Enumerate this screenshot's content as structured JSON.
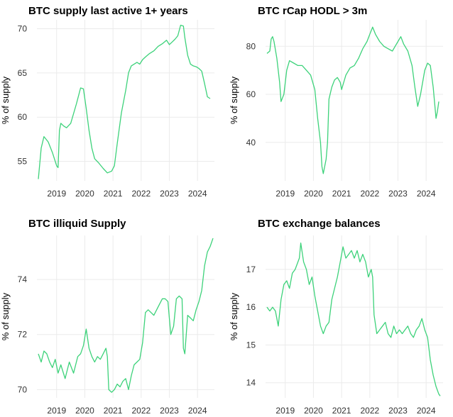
{
  "chart_data": [
    {
      "type": "line",
      "title": "BTC supply last active 1+ years",
      "xlabel": "",
      "ylabel": "% of supply",
      "x_ticks": [
        "2019",
        "2020",
        "2021",
        "2022",
        "2023",
        "2024"
      ],
      "y_ticks": [
        55,
        60,
        65,
        70
      ],
      "xlim": [
        2018.3,
        2024.6
      ],
      "ylim": [
        52.8,
        71.0
      ],
      "color": "#3dd27a",
      "series": [
        {
          "name": "supply last active 1+ years",
          "x": [
            2018.35,
            2018.45,
            2018.55,
            2018.7,
            2018.85,
            2018.95,
            2019.0,
            2019.05,
            2019.1,
            2019.15,
            2019.25,
            2019.35,
            2019.5,
            2019.7,
            2019.85,
            2019.95,
            2020.05,
            2020.15,
            2020.25,
            2020.35,
            2020.5,
            2020.65,
            2020.8,
            2020.95,
            2021.05,
            2021.15,
            2021.3,
            2021.45,
            2021.55,
            2021.65,
            2021.75,
            2021.85,
            2021.95,
            2022.05,
            2022.15,
            2022.3,
            2022.45,
            2022.6,
            2022.75,
            2022.9,
            2023.0,
            2023.1,
            2023.2,
            2023.3,
            2023.4,
            2023.5,
            2023.55,
            2023.65,
            2023.75,
            2023.85,
            2023.95,
            2024.05,
            2024.15,
            2024.25,
            2024.35,
            2024.45
          ],
          "values": [
            53.0,
            56.5,
            57.8,
            57.2,
            56.0,
            55.0,
            54.5,
            54.3,
            58.5,
            59.3,
            59.0,
            58.8,
            59.3,
            61.5,
            63.3,
            63.2,
            61.0,
            58.5,
            56.5,
            55.3,
            54.8,
            54.2,
            53.7,
            53.9,
            54.5,
            57.0,
            60.5,
            63.0,
            65.0,
            65.8,
            66.0,
            66.2,
            66.0,
            66.5,
            66.8,
            67.2,
            67.5,
            68.0,
            68.3,
            68.7,
            68.2,
            68.5,
            68.8,
            69.2,
            70.4,
            70.3,
            69.0,
            67.0,
            66.0,
            65.8,
            65.7,
            65.5,
            65.2,
            63.8,
            62.3,
            62.1
          ]
        }
      ]
    },
    {
      "type": "line",
      "title": "BTC rCap HODL > 3m",
      "xlabel": "",
      "ylabel": "% of supply",
      "x_ticks": [
        "2019",
        "2020",
        "2021",
        "2022",
        "2023",
        "2024"
      ],
      "y_ticks": [
        40,
        60,
        80
      ],
      "xlim": [
        2018.3,
        2024.6
      ],
      "ylim": [
        24,
        91
      ],
      "color": "#3dd27a",
      "series": [
        {
          "name": "rCap HODL > 3m",
          "x": [
            2018.35,
            2018.45,
            2018.5,
            2018.55,
            2018.6,
            2018.7,
            2018.8,
            2018.85,
            2018.95,
            2019.05,
            2019.15,
            2019.3,
            2019.45,
            2019.6,
            2019.75,
            2019.9,
            2020.05,
            2020.15,
            2020.25,
            2020.3,
            2020.35,
            2020.45,
            2020.5,
            2020.55,
            2020.65,
            2020.75,
            2020.85,
            2020.95,
            2021.0,
            2021.05,
            2021.15,
            2021.3,
            2021.45,
            2021.6,
            2021.75,
            2021.9,
            2022.0,
            2022.1,
            2022.2,
            2022.35,
            2022.5,
            2022.65,
            2022.8,
            2022.9,
            2023.0,
            2023.1,
            2023.2,
            2023.35,
            2023.5,
            2023.6,
            2023.7,
            2023.8,
            2023.95,
            2024.05,
            2024.15,
            2024.25,
            2024.35,
            2024.4,
            2024.45
          ],
          "values": [
            77,
            78,
            83,
            84,
            82,
            75,
            65,
            57,
            60,
            70,
            74,
            73,
            72,
            72,
            70,
            68,
            62,
            50,
            40,
            30,
            27,
            33,
            40,
            58,
            63,
            66,
            67,
            65,
            62,
            64,
            68,
            71,
            72,
            75,
            79,
            82,
            85,
            88,
            85,
            82,
            80,
            79,
            78,
            80,
            82,
            84,
            81,
            78,
            72,
            63,
            55,
            60,
            70,
            73,
            72,
            63,
            50,
            53,
            57
          ]
        }
      ]
    },
    {
      "type": "line",
      "title": "BTC illiquid Supply",
      "xlabel": "",
      "ylabel": "% of supply",
      "x_ticks": [
        "2019",
        "2020",
        "2021",
        "2022",
        "2023",
        "2024"
      ],
      "y_ticks": [
        70,
        72,
        74
      ],
      "xlim": [
        2018.3,
        2024.6
      ],
      "ylim": [
        69.7,
        75.6
      ],
      "color": "#3dd27a",
      "series": [
        {
          "name": "illiquid supply",
          "x": [
            2018.35,
            2018.45,
            2018.55,
            2018.65,
            2018.75,
            2018.85,
            2018.95,
            2019.05,
            2019.15,
            2019.3,
            2019.45,
            2019.6,
            2019.75,
            2019.85,
            2019.95,
            2020.05,
            2020.15,
            2020.25,
            2020.35,
            2020.45,
            2020.55,
            2020.65,
            2020.75,
            2020.8,
            2020.85,
            2020.95,
            2021.05,
            2021.15,
            2021.25,
            2021.35,
            2021.45,
            2021.55,
            2021.65,
            2021.75,
            2021.85,
            2021.95,
            2022.05,
            2022.15,
            2022.25,
            2022.35,
            2022.45,
            2022.6,
            2022.75,
            2022.85,
            2022.95,
            2023.05,
            2023.15,
            2023.25,
            2023.35,
            2023.45,
            2023.5,
            2023.55,
            2023.65,
            2023.75,
            2023.85,
            2023.95,
            2024.05,
            2024.15,
            2024.25,
            2024.35,
            2024.45,
            2024.55
          ],
          "values": [
            71.3,
            71.0,
            71.4,
            71.3,
            71.0,
            70.8,
            71.1,
            70.6,
            70.9,
            70.4,
            71.0,
            70.6,
            71.2,
            71.3,
            71.6,
            72.2,
            71.5,
            71.2,
            71.0,
            71.2,
            71.1,
            71.3,
            71.5,
            71.2,
            70.0,
            69.9,
            70.0,
            70.2,
            70.1,
            70.3,
            70.4,
            70.0,
            70.5,
            70.9,
            71.0,
            71.1,
            71.7,
            72.8,
            72.9,
            72.8,
            72.7,
            73.0,
            73.3,
            73.3,
            73.2,
            72.0,
            72.3,
            73.3,
            73.4,
            73.3,
            71.5,
            71.3,
            72.7,
            72.6,
            72.5,
            72.9,
            73.2,
            73.6,
            74.5,
            75.0,
            75.2,
            75.5
          ]
        }
      ]
    },
    {
      "type": "line",
      "title": "BTC exchange balances",
      "xlabel": "",
      "ylabel": "% of supply",
      "x_ticks": [
        "2019",
        "2020",
        "2021",
        "2022",
        "2023",
        "2024"
      ],
      "y_ticks": [
        14,
        15,
        16,
        17
      ],
      "xlim": [
        2018.3,
        2024.6
      ],
      "ylim": [
        13.6,
        17.9
      ],
      "color": "#3dd27a",
      "series": [
        {
          "name": "exchange balances",
          "x": [
            2018.35,
            2018.45,
            2018.55,
            2018.65,
            2018.75,
            2018.85,
            2018.95,
            2019.05,
            2019.15,
            2019.25,
            2019.35,
            2019.5,
            2019.55,
            2019.65,
            2019.75,
            2019.85,
            2019.95,
            2020.05,
            2020.15,
            2020.25,
            2020.35,
            2020.45,
            2020.55,
            2020.65,
            2020.75,
            2020.85,
            2020.95,
            2021.05,
            2021.15,
            2021.25,
            2021.35,
            2021.45,
            2021.55,
            2021.65,
            2021.75,
            2021.85,
            2021.95,
            2022.05,
            2022.1,
            2022.15,
            2022.25,
            2022.35,
            2022.45,
            2022.55,
            2022.65,
            2022.75,
            2022.85,
            2022.95,
            2023.05,
            2023.15,
            2023.25,
            2023.35,
            2023.45,
            2023.55,
            2023.65,
            2023.75,
            2023.85,
            2023.95,
            2024.05,
            2024.15,
            2024.25,
            2024.35,
            2024.45,
            2024.5
          ],
          "values": [
            16.0,
            15.9,
            16.0,
            15.9,
            15.5,
            16.2,
            16.6,
            16.7,
            16.5,
            16.9,
            17.0,
            17.3,
            17.7,
            17.2,
            17.0,
            16.6,
            16.8,
            16.3,
            15.9,
            15.5,
            15.3,
            15.5,
            15.6,
            16.2,
            16.5,
            16.8,
            17.2,
            17.6,
            17.3,
            17.4,
            17.5,
            17.3,
            17.5,
            17.2,
            17.4,
            17.2,
            16.8,
            17.0,
            16.8,
            15.8,
            15.3,
            15.4,
            15.5,
            15.6,
            15.3,
            15.2,
            15.5,
            15.3,
            15.4,
            15.3,
            15.4,
            15.5,
            15.3,
            15.2,
            15.4,
            15.5,
            15.7,
            15.4,
            15.2,
            14.6,
            14.2,
            13.9,
            13.7,
            13.65
          ]
        }
      ]
    }
  ]
}
